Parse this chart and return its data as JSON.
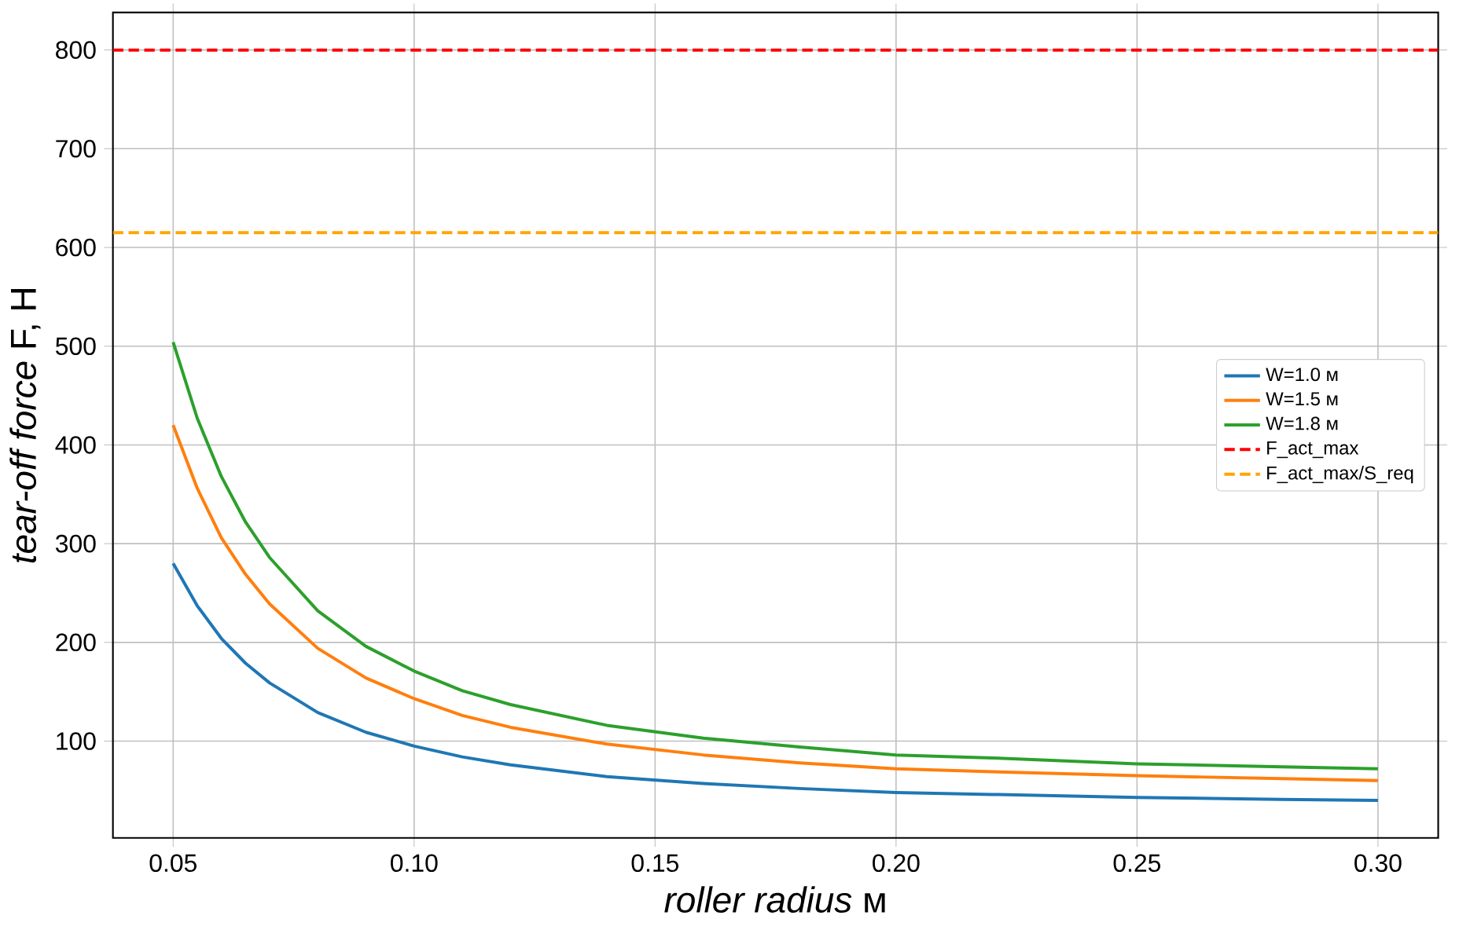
{
  "chart_data": {
    "type": "line",
    "xlabel": "*roller radius* м",
    "ylabel": "*tear-off force* F, Н",
    "x": [
      0.05,
      0.055,
      0.06,
      0.065,
      0.07,
      0.08,
      0.09,
      0.1,
      0.11,
      0.12,
      0.14,
      0.16,
      0.18,
      0.2,
      0.22,
      0.25,
      0.28,
      0.3
    ],
    "series": [
      {
        "name": "W=1.0 м",
        "color": "#1f77b4",
        "values": [
          280,
          237,
          204,
          179,
          159,
          129,
          109,
          95,
          84,
          76,
          64,
          57,
          52,
          48,
          46,
          43,
          41,
          40
        ]
      },
      {
        "name": "W=1.5 м",
        "color": "#ff7f0e",
        "values": [
          420,
          356,
          306,
          269,
          239,
          194,
          164,
          143,
          126,
          114,
          97,
          86,
          78,
          72,
          69,
          65,
          62,
          60
        ]
      },
      {
        "name": "W=1.8 м",
        "color": "#2ca02c",
        "values": [
          504,
          427,
          368,
          322,
          286,
          232,
          196,
          171,
          151,
          137,
          116,
          103,
          94,
          86,
          83,
          77,
          74,
          72
        ]
      }
    ],
    "ref_lines": [
      {
        "axis": "y",
        "value": 800,
        "label": "F_act_max",
        "color": "#ff0000",
        "line_style": "dashed"
      },
      {
        "axis": "y",
        "value": 615,
        "label": "F_act_max/S_req",
        "color": "#ffa500",
        "line_style": "dashed"
      }
    ],
    "xlim": [
      0.0375,
      0.3125
    ],
    "ylim": [
      2,
      838
    ],
    "xticks": [
      {
        "value": 0.05,
        "label": "0.05"
      },
      {
        "value": 0.1,
        "label": "0.10"
      },
      {
        "value": 0.15,
        "label": "0.15"
      },
      {
        "value": 0.2,
        "label": "0.20"
      },
      {
        "value": 0.25,
        "label": "0.25"
      },
      {
        "value": 0.3,
        "label": "0.30"
      }
    ],
    "yticks": [
      100,
      200,
      300,
      400,
      500,
      600,
      700,
      800
    ],
    "grid": true,
    "legend": "center right"
  }
}
